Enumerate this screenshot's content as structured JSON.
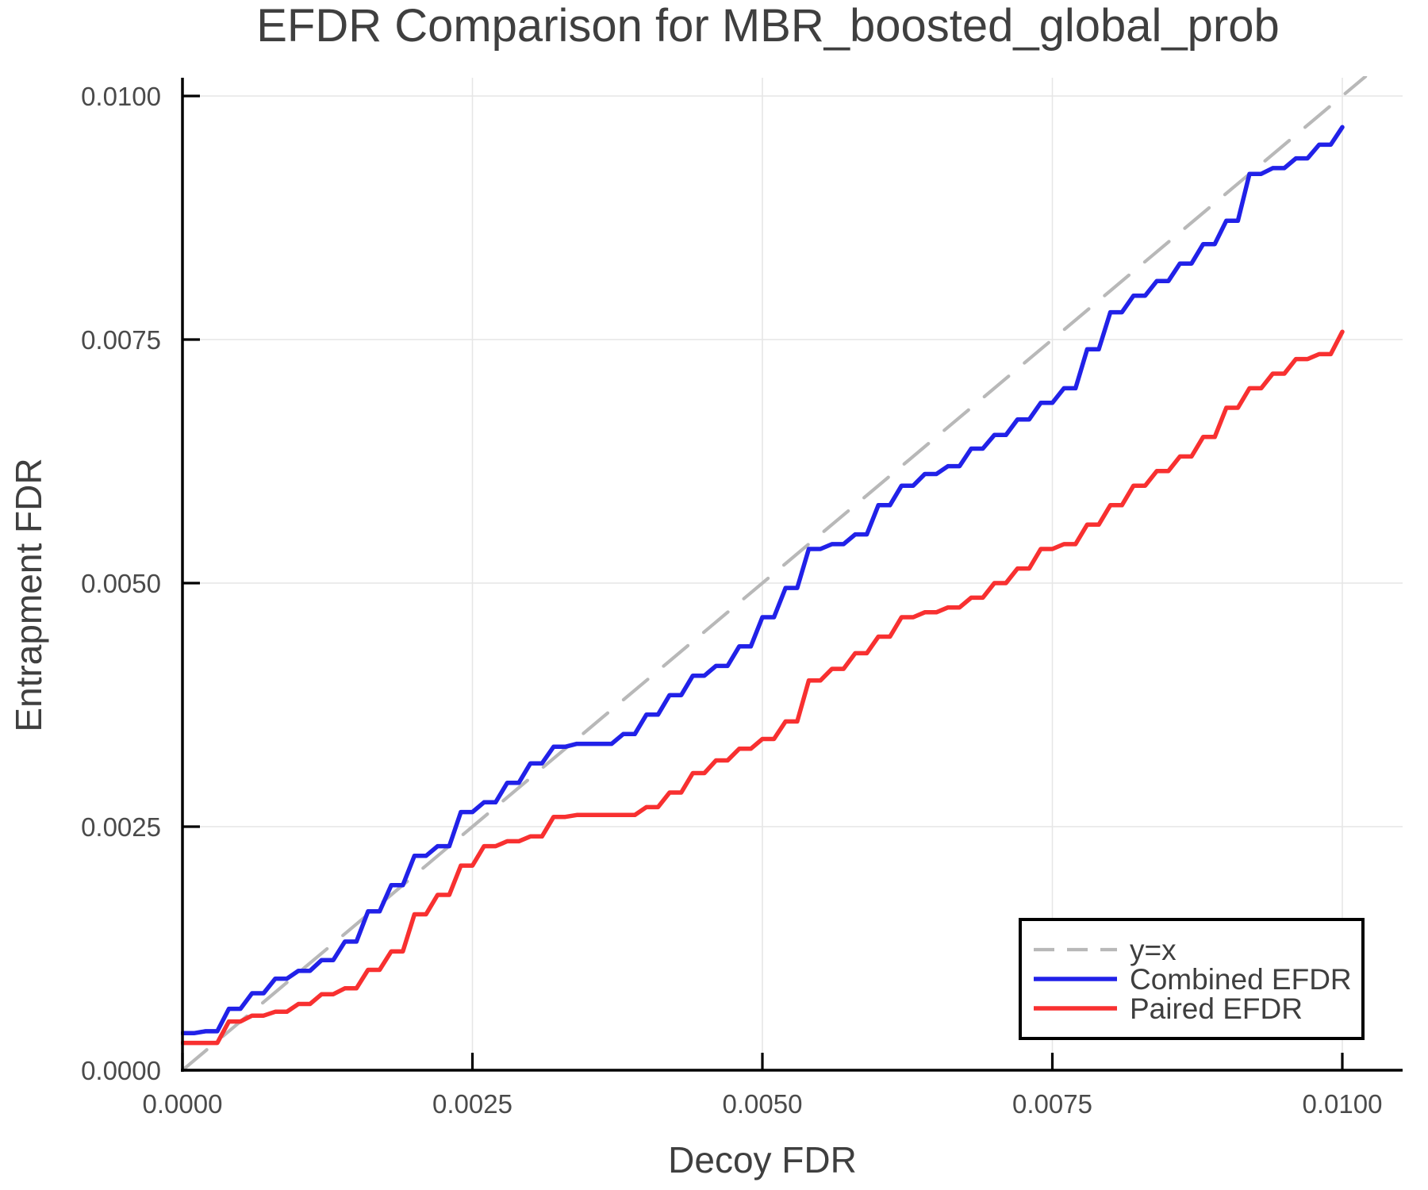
{
  "title": "EFDR Comparison for MBR_boosted_global_prob",
  "colors": {
    "combined_efdr": "#2121e8",
    "paired_efdr": "#f83030",
    "identity_line": "#b8b8b8",
    "grid": "#e6e6e6",
    "axis": "#000000",
    "text": "#3f3f3f",
    "legend_border": "#000000",
    "background": "#ffffff"
  },
  "legend": {
    "items": [
      {
        "label": "y=x",
        "color": "#b8b8b8",
        "dashed": true
      },
      {
        "label": "Combined EFDR",
        "color": "#2121e8",
        "dashed": false
      },
      {
        "label": "Paired EFDR",
        "color": "#f83030",
        "dashed": false
      }
    ]
  },
  "chart_data": {
    "type": "line",
    "title": "EFDR Comparison for MBR_boosted_global_prob",
    "xlabel": "Decoy FDR",
    "ylabel": "Entrapment FDR",
    "xlim": [
      0.0,
      0.0105
    ],
    "ylim": [
      0.0,
      0.0102
    ],
    "grid": true,
    "legend_position": "lower right",
    "xticks": {
      "values": [
        0.0,
        0.0025,
        0.005,
        0.0075,
        0.01
      ],
      "labels": [
        "0.0000",
        "0.0025",
        "0.0050",
        "0.0075",
        "0.0100"
      ]
    },
    "yticks": {
      "values": [
        0.0,
        0.0025,
        0.005,
        0.0075,
        0.01
      ],
      "labels": [
        "0.0000",
        "0.0025",
        "0.0050",
        "0.0075",
        "0.0100"
      ]
    },
    "x": [
      0.0,
      0.0002,
      0.0004,
      0.0006,
      0.0008,
      0.001,
      0.0012,
      0.0014,
      0.0016,
      0.0018,
      0.002,
      0.0022,
      0.0024,
      0.0026,
      0.0028,
      0.003,
      0.0032,
      0.0034,
      0.0036,
      0.0038,
      0.004,
      0.0042,
      0.0044,
      0.0046,
      0.0048,
      0.005,
      0.0052,
      0.0054,
      0.0056,
      0.0058,
      0.006,
      0.0062,
      0.0064,
      0.0066,
      0.0068,
      0.007,
      0.0072,
      0.0074,
      0.0076,
      0.0078,
      0.008,
      0.0082,
      0.0084,
      0.0086,
      0.0088,
      0.009,
      0.0092,
      0.0094,
      0.0096,
      0.0098,
      0.01
    ],
    "series": [
      {
        "name": "y=x",
        "style": "dashed",
        "color": "#b8b8b8",
        "identity": true,
        "x": [
          0.0,
          0.0102
        ],
        "y": [
          0.0,
          0.0102
        ]
      },
      {
        "name": "Combined EFDR",
        "style": "solid",
        "color": "#2121e8",
        "y": [
          0.00038,
          0.0004,
          0.00063,
          0.00079,
          0.00094,
          0.00102,
          0.00113,
          0.00132,
          0.00163,
          0.0019,
          0.0022,
          0.0023,
          0.00265,
          0.00275,
          0.00295,
          0.00315,
          0.00332,
          0.00335,
          0.00335,
          0.00345,
          0.00365,
          0.00385,
          0.00405,
          0.00415,
          0.00435,
          0.00465,
          0.00495,
          0.00535,
          0.0054,
          0.0055,
          0.0058,
          0.006,
          0.00612,
          0.0062,
          0.00638,
          0.00652,
          0.00668,
          0.00685,
          0.007,
          0.0074,
          0.00778,
          0.00795,
          0.0081,
          0.00828,
          0.00848,
          0.00872,
          0.0092,
          0.00926,
          0.00936,
          0.0095,
          0.00968
        ]
      },
      {
        "name": "Paired EFDR",
        "style": "solid",
        "color": "#f83030",
        "y": [
          0.00028,
          0.00028,
          0.0005,
          0.00056,
          0.0006,
          0.00068,
          0.00078,
          0.00084,
          0.00103,
          0.00122,
          0.0016,
          0.0018,
          0.0021,
          0.0023,
          0.00235,
          0.0024,
          0.0026,
          0.00262,
          0.00262,
          0.00262,
          0.0027,
          0.00285,
          0.00305,
          0.00318,
          0.0033,
          0.0034,
          0.00358,
          0.004,
          0.00412,
          0.00428,
          0.00445,
          0.00465,
          0.0047,
          0.00475,
          0.00485,
          0.005,
          0.00515,
          0.00535,
          0.0054,
          0.0056,
          0.0058,
          0.006,
          0.00615,
          0.0063,
          0.0065,
          0.0068,
          0.007,
          0.00715,
          0.0073,
          0.00735,
          0.00758
        ]
      }
    ]
  }
}
